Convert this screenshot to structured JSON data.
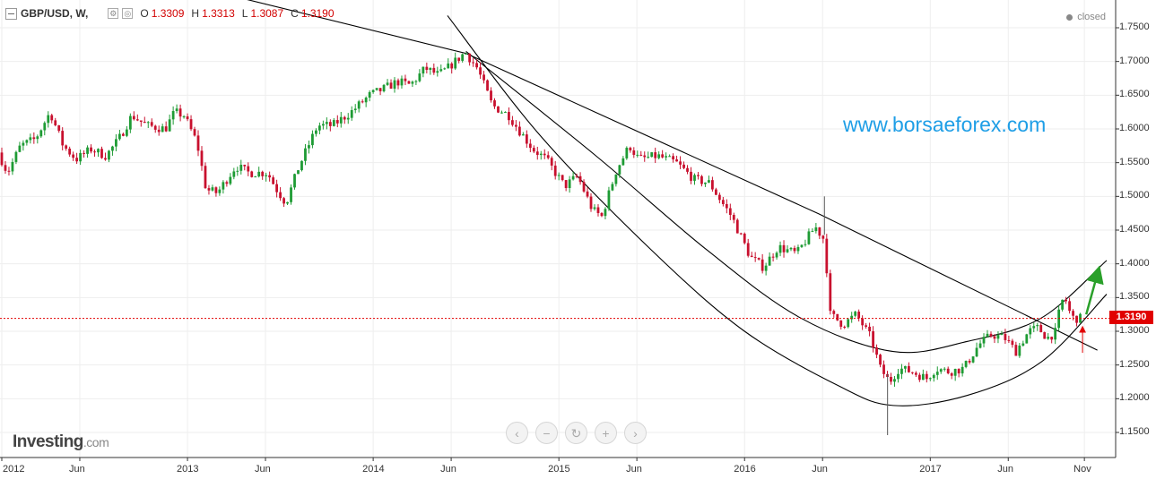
{
  "header": {
    "symbol": "GBP/USD, W,",
    "open_label": "O",
    "open_value": "1.3309",
    "high_label": "H",
    "high_value": "1.3313",
    "low_label": "L",
    "low_value": "1.3087",
    "close_label": "C",
    "close_value": "1.3190"
  },
  "status": {
    "text": "closed"
  },
  "watermark": {
    "text": "www.borsaeforex.com"
  },
  "logo": {
    "text": "Investing",
    "suffix": ".com"
  },
  "price_tag": {
    "text": "1.3190",
    "value": 1.319
  },
  "nav_buttons": [
    {
      "name": "scroll-left-button",
      "glyph": "‹"
    },
    {
      "name": "zoom-out-button",
      "glyph": "−"
    },
    {
      "name": "reset-button",
      "glyph": "↻"
    },
    {
      "name": "zoom-in-button",
      "glyph": "+"
    },
    {
      "name": "scroll-right-button",
      "glyph": "›"
    }
  ],
  "colors": {
    "up": "#1e9b34",
    "down": "#c8102e",
    "trend": "#000000",
    "price_line": "#e10000",
    "arrow_up": "#2aa02a",
    "arrow_small": "#e10000"
  },
  "chart_data": {
    "type": "candlestick",
    "title": "GBP/USD, W,",
    "y_axis": {
      "range": [
        1.12,
        1.78
      ],
      "ticks": [
        "1.7500",
        "1.7000",
        "1.6500",
        "1.6000",
        "1.5500",
        "1.5000",
        "1.4500",
        "1.4000",
        "1.3500",
        "1.3000",
        "1.2500",
        "1.2000",
        "1.1500"
      ],
      "tick_values": [
        1.75,
        1.7,
        1.65,
        1.6,
        1.55,
        1.5,
        1.45,
        1.4,
        1.35,
        1.3,
        1.25,
        1.2,
        1.15
      ]
    },
    "x_axis": {
      "ticks": [
        "2012",
        "Jun",
        "2013",
        "Jun",
        "2014",
        "Jun",
        "2015",
        "Jun",
        "2016",
        "Jun",
        "2017",
        "Jun",
        "Nov"
      ],
      "tick_years": [
        2012.0,
        2012.42,
        2013.0,
        2013.42,
        2014.0,
        2014.42,
        2015.0,
        2015.42,
        2016.0,
        2016.42,
        2017.0,
        2017.42,
        2017.83
      ]
    },
    "current_price": 1.319,
    "anchors": [
      [
        2012.0,
        1.565
      ],
      [
        2012.05,
        1.535
      ],
      [
        2012.12,
        1.575
      ],
      [
        2012.2,
        1.585
      ],
      [
        2012.28,
        1.625
      ],
      [
        2012.35,
        1.575
      ],
      [
        2012.42,
        1.555
      ],
      [
        2012.5,
        1.57
      ],
      [
        2012.58,
        1.56
      ],
      [
        2012.65,
        1.585
      ],
      [
        2012.72,
        1.62
      ],
      [
        2012.8,
        1.605
      ],
      [
        2012.9,
        1.6
      ],
      [
        2012.95,
        1.625
      ],
      [
        2013.0,
        1.62
      ],
      [
        2013.07,
        1.58
      ],
      [
        2013.12,
        1.51
      ],
      [
        2013.18,
        1.505
      ],
      [
        2013.28,
        1.545
      ],
      [
        2013.35,
        1.535
      ],
      [
        2013.45,
        1.535
      ],
      [
        2013.5,
        1.51
      ],
      [
        2013.55,
        1.49
      ],
      [
        2013.62,
        1.545
      ],
      [
        2013.72,
        1.605
      ],
      [
        2013.8,
        1.605
      ],
      [
        2013.9,
        1.625
      ],
      [
        2014.0,
        1.65
      ],
      [
        2014.08,
        1.66
      ],
      [
        2014.15,
        1.67
      ],
      [
        2014.22,
        1.665
      ],
      [
        2014.3,
        1.69
      ],
      [
        2014.37,
        1.68
      ],
      [
        2014.42,
        1.69
      ],
      [
        2014.5,
        1.71
      ],
      [
        2014.52,
        1.712
      ],
      [
        2014.58,
        1.69
      ],
      [
        2014.66,
        1.635
      ],
      [
        2014.75,
        1.62
      ],
      [
        2014.8,
        1.6
      ],
      [
        2014.88,
        1.57
      ],
      [
        2014.95,
        1.555
      ],
      [
        2015.05,
        1.515
      ],
      [
        2015.12,
        1.53
      ],
      [
        2015.2,
        1.48
      ],
      [
        2015.25,
        1.47
      ],
      [
        2015.33,
        1.54
      ],
      [
        2015.4,
        1.575
      ],
      [
        2015.45,
        1.555
      ],
      [
        2015.55,
        1.56
      ],
      [
        2015.65,
        1.55
      ],
      [
        2015.75,
        1.525
      ],
      [
        2015.83,
        1.52
      ],
      [
        2015.9,
        1.49
      ],
      [
        2015.95,
        1.47
      ],
      [
        2016.0,
        1.44
      ],
      [
        2016.05,
        1.41
      ],
      [
        2016.12,
        1.395
      ],
      [
        2016.2,
        1.425
      ],
      [
        2016.3,
        1.415
      ],
      [
        2016.4,
        1.455
      ],
      [
        2016.45,
        1.435
      ],
      [
        2016.48,
        1.325
      ],
      [
        2016.55,
        1.31
      ],
      [
        2016.62,
        1.325
      ],
      [
        2016.7,
        1.29
      ],
      [
        2016.75,
        1.245
      ],
      [
        2016.8,
        1.225
      ],
      [
        2016.85,
        1.245
      ],
      [
        2016.92,
        1.24
      ],
      [
        2017.0,
        1.23
      ],
      [
        2017.05,
        1.245
      ],
      [
        2017.12,
        1.24
      ],
      [
        2017.2,
        1.245
      ],
      [
        2017.28,
        1.28
      ],
      [
        2017.35,
        1.295
      ],
      [
        2017.42,
        1.29
      ],
      [
        2017.48,
        1.27
      ],
      [
        2017.55,
        1.3
      ],
      [
        2017.6,
        1.305
      ],
      [
        2017.65,
        1.29
      ],
      [
        2017.7,
        1.3
      ],
      [
        2017.72,
        1.345
      ],
      [
        2017.75,
        1.345
      ],
      [
        2017.78,
        1.32
      ],
      [
        2017.82,
        1.319
      ]
    ],
    "spikes": [
      {
        "x": 2016.43,
        "y": 1.5
      },
      {
        "x": 2016.77,
        "y": 1.146
      }
    ],
    "trend_lines": [
      {
        "name": "long-downtrend-line",
        "points": [
          [
            2011.9,
            1.888
          ],
          [
            2014.5,
            1.712
          ],
          [
            2016.4,
            1.474
          ],
          [
            2017.9,
            1.272
          ]
        ]
      }
    ],
    "arcs": [
      {
        "name": "upper-arc",
        "points": [
          [
            2014.5,
            1.715
          ],
          [
            2015.2,
            1.56
          ],
          [
            2015.8,
            1.42
          ],
          [
            2016.3,
            1.32
          ],
          [
            2016.8,
            1.27
          ],
          [
            2017.2,
            1.285
          ],
          [
            2017.6,
            1.32
          ],
          [
            2017.95,
            1.405
          ]
        ]
      },
      {
        "name": "lower-arc",
        "points": [
          [
            2014.4,
            1.768
          ],
          [
            2014.9,
            1.59
          ],
          [
            2015.5,
            1.42
          ],
          [
            2016.0,
            1.3
          ],
          [
            2016.5,
            1.22
          ],
          [
            2016.8,
            1.19
          ],
          [
            2017.2,
            1.205
          ],
          [
            2017.6,
            1.255
          ],
          [
            2017.95,
            1.355
          ]
        ]
      }
    ],
    "annotations": [
      {
        "name": "green-up-arrow",
        "from": [
          2017.84,
          1.325
        ],
        "to": [
          2017.9,
          1.385
        ]
      },
      {
        "name": "red-up-arrow",
        "from": [
          2017.82,
          1.268
        ],
        "to": [
          2017.82,
          1.303
        ]
      }
    ]
  }
}
